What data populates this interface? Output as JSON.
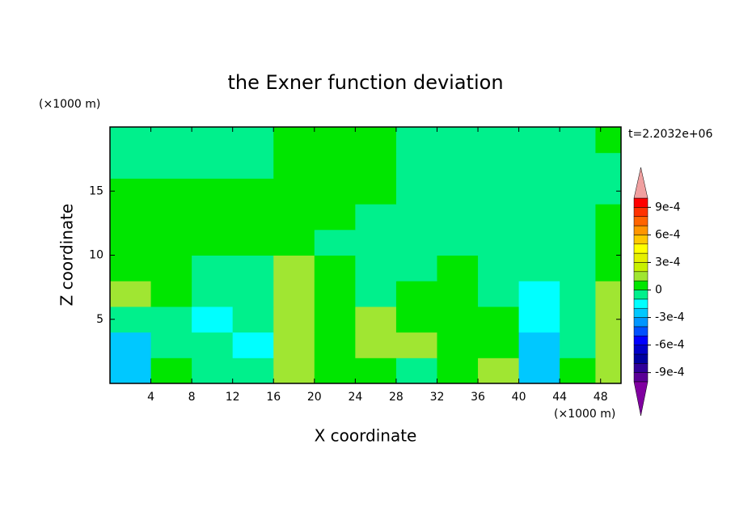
{
  "chart_data": {
    "type": "contour",
    "title": "the Exner function deviation",
    "x_label": "X coordinate",
    "y_label": "Z coordinate",
    "x_unit": "(×1000 m)",
    "y_unit": "(×1000 m)",
    "annotation": "t=2.2032e+06",
    "xlim": [
      0,
      50
    ],
    "ylim": [
      0,
      20
    ],
    "xticks": [
      4,
      8,
      12,
      16,
      20,
      24,
      28,
      32,
      36,
      40,
      44,
      48
    ],
    "yticks": [
      5,
      10,
      15
    ],
    "x": [
      2,
      6,
      10,
      14,
      18,
      22,
      26,
      30,
      34,
      38,
      42,
      46,
      49
    ],
    "y": [
      1,
      3,
      5,
      7,
      9,
      11,
      13,
      15,
      17,
      19
    ],
    "z": [
      [
        -0.00025,
        5e-05,
        -5e-05,
        -5e-05,
        0.00015,
        5e-05,
        5e-05,
        -5e-05,
        5e-05,
        0.00015,
        -0.00025,
        5e-05,
        0.00015
      ],
      [
        -0.00025,
        -5e-05,
        -5e-05,
        -0.00015,
        0.00015,
        5e-05,
        0.00015,
        0.00015,
        5e-05,
        5e-05,
        -0.00025,
        -5e-05,
        0.00015
      ],
      [
        -5e-05,
        -5e-05,
        -0.00015,
        -5e-05,
        0.00015,
        5e-05,
        0.00015,
        5e-05,
        5e-05,
        5e-05,
        -0.00015,
        -5e-05,
        0.00015
      ],
      [
        0.00015,
        5e-05,
        -5e-05,
        -5e-05,
        0.00015,
        5e-05,
        -5e-05,
        5e-05,
        5e-05,
        -5e-05,
        -0.00015,
        -5e-05,
        0.00015
      ],
      [
        5e-05,
        5e-05,
        -5e-05,
        -5e-05,
        0.00015,
        5e-05,
        -5e-05,
        -5e-05,
        5e-05,
        -5e-05,
        -5e-05,
        -5e-05,
        5e-05
      ],
      [
        5e-05,
        5e-05,
        5e-05,
        5e-05,
        5e-05,
        -5e-05,
        -5e-05,
        -5e-05,
        -5e-05,
        -5e-05,
        -5e-05,
        -5e-05,
        5e-05
      ],
      [
        5e-05,
        5e-05,
        5e-05,
        5e-05,
        5e-05,
        5e-05,
        -5e-05,
        -5e-05,
        -5e-05,
        -5e-05,
        -5e-05,
        -5e-05,
        5e-05
      ],
      [
        5e-05,
        5e-05,
        5e-05,
        5e-05,
        5e-05,
        5e-05,
        5e-05,
        -5e-05,
        -5e-05,
        -5e-05,
        -5e-05,
        -5e-05,
        -5e-05
      ],
      [
        -5e-05,
        -5e-05,
        -5e-05,
        -5e-05,
        5e-05,
        5e-05,
        5e-05,
        -5e-05,
        -5e-05,
        -5e-05,
        -5e-05,
        -5e-05,
        -5e-05
      ],
      [
        -5e-05,
        -5e-05,
        -5e-05,
        -5e-05,
        5e-05,
        5e-05,
        5e-05,
        -5e-05,
        -5e-05,
        -5e-05,
        -5e-05,
        -5e-05,
        5e-05
      ]
    ],
    "clim": [
      -0.001,
      0.001
    ],
    "colors": [
      "#5a0096",
      "#30009a",
      "#0000a0",
      "#0000c8",
      "#0000ff",
      "#0050ff",
      "#0096ff",
      "#00c8ff",
      "#00ffff",
      "#00f08c",
      "#00e600",
      "#a0e632",
      "#c8f000",
      "#e6f000",
      "#ffff00",
      "#ffc800",
      "#ff9600",
      "#ff6400",
      "#ff3200",
      "#ff0000"
    ],
    "over_color": "#f0a0a0",
    "under_color": "#8000a0",
    "colorbar_ticks": [
      {
        "value": 0.0009,
        "label": "9e-4"
      },
      {
        "value": 0.0006,
        "label": "6e-4"
      },
      {
        "value": 0.0003,
        "label": "3e-4"
      },
      0,
      {
        "value": -0.0003,
        "label": "-3e-4"
      },
      {
        "value": -0.0006,
        "label": "-6e-4"
      },
      {
        "value": -0.0009,
        "label": "-9e-4"
      }
    ]
  }
}
